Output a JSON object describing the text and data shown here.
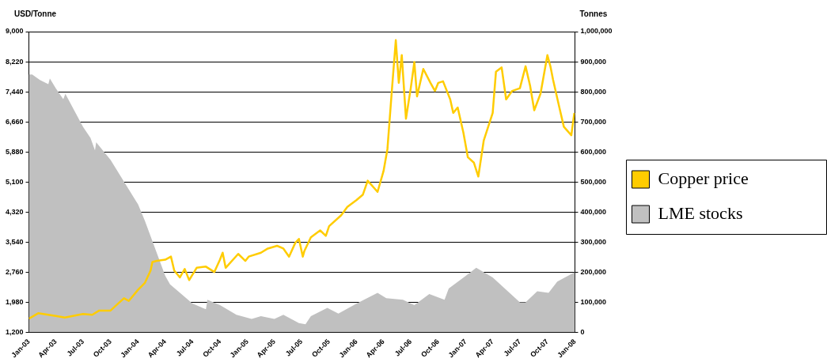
{
  "chart_data": {
    "type": "line",
    "ylabel": "USD/Tonne",
    "y2label": "Tonnes",
    "xlim": [
      "2003-01-01",
      "2008-01-01"
    ],
    "xticks": [
      {
        "value": "2003-01-01",
        "label": "Jan-03"
      },
      {
        "value": "2003-04-01",
        "label": "Apr-03"
      },
      {
        "value": "2003-07-01",
        "label": "Jul-03"
      },
      {
        "value": "2003-10-01",
        "label": "Oct-03"
      },
      {
        "value": "2004-01-01",
        "label": "Jan-04"
      },
      {
        "value": "2004-04-01",
        "label": "Apr-04"
      },
      {
        "value": "2004-07-01",
        "label": "Jul-04"
      },
      {
        "value": "2004-10-01",
        "label": "Oct-04"
      },
      {
        "value": "2005-01-01",
        "label": "Jan-05"
      },
      {
        "value": "2005-04-01",
        "label": "Apr-05"
      },
      {
        "value": "2005-07-01",
        "label": "Jul-05"
      },
      {
        "value": "2005-10-01",
        "label": "Oct-05"
      },
      {
        "value": "2006-01-01",
        "label": "Jan-06"
      },
      {
        "value": "2006-04-01",
        "label": "Apr-06"
      },
      {
        "value": "2006-07-01",
        "label": "Jul-06"
      },
      {
        "value": "2006-10-01",
        "label": "Oct-06"
      },
      {
        "value": "2007-01-01",
        "label": "Jan-07"
      },
      {
        "value": "2007-04-01",
        "label": "Apr-07"
      },
      {
        "value": "2007-07-01",
        "label": "Jul-07"
      },
      {
        "value": "2007-10-01",
        "label": "Oct-07"
      },
      {
        "value": "2008-01-01",
        "label": "Jan-08"
      }
    ],
    "ylim": [
      1200,
      9000
    ],
    "yticks": [
      {
        "value": 1200,
        "label": "1,200"
      },
      {
        "value": 1980,
        "label": "1,980"
      },
      {
        "value": 2760,
        "label": "2,760"
      },
      {
        "value": 3540,
        "label": "3,540"
      },
      {
        "value": 4320,
        "label": "4,320"
      },
      {
        "value": 5100,
        "label": "5,100"
      },
      {
        "value": 5880,
        "label": "5,880"
      },
      {
        "value": 6660,
        "label": "6,660"
      },
      {
        "value": 7440,
        "label": "7,440"
      },
      {
        "value": 8220,
        "label": "8,220"
      },
      {
        "value": 9000,
        "label": "9,000"
      }
    ],
    "y2lim": [
      0,
      1000000
    ],
    "y2ticks": [
      0,
      {
        "value": 100000,
        "label": "100,000"
      },
      {
        "value": 200000,
        "label": "200,000"
      },
      {
        "value": 300000,
        "label": "300,000"
      },
      {
        "value": 400000,
        "label": "400,000"
      },
      {
        "value": 500000,
        "label": "500,000"
      },
      {
        "value": 600000,
        "label": "600,000"
      },
      {
        "value": 700000,
        "label": "700,000"
      },
      {
        "value": 800000,
        "label": "800,000"
      },
      {
        "value": 900000,
        "label": "900,000"
      },
      {
        "value": 1000000,
        "label": "1,000,000"
      }
    ],
    "grid": "y",
    "legend": "right",
    "marker": "none",
    "series": [
      {
        "name": "Copper price",
        "color": "#ffcc00",
        "x": [
          "2003-01-01",
          "2003-02-01",
          "2003-04-01",
          "2003-05-01",
          "2003-07-01",
          "2003-08-01",
          "2003-08-24",
          "2003-10-01",
          "2003-11-01",
          "2003-11-15",
          "2003-12-01",
          "2004-01-01",
          "2004-01-24",
          "2004-02-12",
          "2004-02-18",
          "2004-03-04",
          "2004-04-01",
          "2004-04-20",
          "2004-05-01",
          "2004-05-20",
          "2004-06-05",
          "2004-06-20",
          "2004-07-15",
          "2004-08-15",
          "2004-09-12",
          "2004-10-01",
          "2004-10-10",
          "2004-10-20",
          "2004-12-01",
          "2004-12-25",
          "2005-01-05",
          "2005-02-15",
          "2005-03-10",
          "2005-04-10",
          "2005-05-01",
          "2005-05-20",
          "2005-06-10",
          "2005-06-22",
          "2005-07-05",
          "2005-07-10",
          "2005-08-01",
          "2005-09-01",
          "2005-09-20",
          "2005-10-01",
          "2005-11-10",
          "2005-12-01",
          "2006-01-01",
          "2006-01-22",
          "2006-02-07",
          "2006-03-12",
          "2006-04-01",
          "2006-04-14",
          "2006-04-28",
          "2006-05-12",
          "2006-05-22",
          "2006-06-01",
          "2006-06-15",
          "2006-07-01",
          "2006-07-13",
          "2006-07-22",
          "2006-08-12",
          "2006-09-05",
          "2006-09-20",
          "2006-10-01",
          "2006-10-17",
          "2006-11-10",
          "2006-11-20",
          "2006-12-05",
          "2006-12-24",
          "2007-01-08",
          "2007-01-28",
          "2007-02-12",
          "2007-03-02",
          "2007-04-01",
          "2007-04-12",
          "2007-05-01",
          "2007-05-16",
          "2007-06-05",
          "2007-07-01",
          "2007-07-20",
          "2007-08-04",
          "2007-08-18",
          "2007-09-08",
          "2007-10-01",
          "2007-10-11",
          "2007-10-20",
          "2007-11-10",
          "2007-11-25",
          "2007-12-20",
          "2007-12-30"
        ],
        "values": [
          1550,
          1690,
          1620,
          1580,
          1670,
          1650,
          1760,
          1760,
          1980,
          2080,
          2010,
          2300,
          2480,
          2800,
          3020,
          3050,
          3080,
          3160,
          2800,
          2620,
          2840,
          2550,
          2870,
          2900,
          2760,
          3080,
          3260,
          2870,
          3230,
          3050,
          3160,
          3260,
          3370,
          3440,
          3370,
          3160,
          3520,
          3620,
          3160,
          3300,
          3660,
          3840,
          3700,
          3950,
          4230,
          4450,
          4630,
          4770,
          5130,
          4840,
          5380,
          5950,
          7390,
          8780,
          7670,
          8390,
          6740,
          7530,
          8210,
          7320,
          8030,
          7670,
          7460,
          7670,
          7710,
          7240,
          6890,
          7030,
          6380,
          5740,
          5600,
          5240,
          6170,
          6890,
          7960,
          8070,
          7240,
          7460,
          7530,
          8100,
          7600,
          6960,
          7390,
          8390,
          8100,
          7750,
          7030,
          6530,
          6310,
          6890
        ]
      },
      {
        "name": "LME stocks",
        "type": "area",
        "axis": "y2",
        "color": "#c0c0c0",
        "x": [
          "2003-01-01",
          "2003-01-12",
          "2003-02-07",
          "2003-03-07",
          "2003-03-12",
          "2003-04-01",
          "2003-04-26",
          "2003-05-03",
          "2003-07-01",
          "2003-07-26",
          "2003-08-10",
          "2003-08-14",
          "2003-10-01",
          "2004-01-01",
          "2004-01-24",
          "2004-04-01",
          "2004-04-17",
          "2004-07-01",
          "2004-08-15",
          "2004-08-20",
          "2004-10-01",
          "2004-11-25",
          "2005-01-15",
          "2005-02-15",
          "2005-04-01",
          "2005-05-01",
          "2005-06-22",
          "2005-07-14",
          "2005-08-01",
          "2005-09-25",
          "2005-11-01",
          "2006-01-01",
          "2006-03-12",
          "2006-04-10",
          "2006-06-05",
          "2006-07-13",
          "2006-09-01",
          "2006-10-22",
          "2006-11-05",
          "2007-01-01",
          "2007-02-05",
          "2007-04-01",
          "2007-07-01",
          "2007-07-20",
          "2007-08-28",
          "2007-10-05",
          "2007-11-03",
          "2008-01-01"
        ],
        "values": [
          857000,
          857000,
          839000,
          825000,
          844000,
          811000,
          775000,
          793000,
          683000,
          646000,
          605000,
          632000,
          573000,
          425000,
          370000,
          187000,
          159000,
          95000,
          76000,
          108000,
          90000,
          58000,
          44000,
          53000,
          44000,
          58000,
          30000,
          26000,
          53000,
          81000,
          62000,
          95000,
          131000,
          113000,
          108000,
          90000,
          127000,
          108000,
          145000,
          187000,
          214000,
          182000,
          99000,
          99000,
          136000,
          131000,
          168000,
          200000
        ]
      }
    ]
  }
}
